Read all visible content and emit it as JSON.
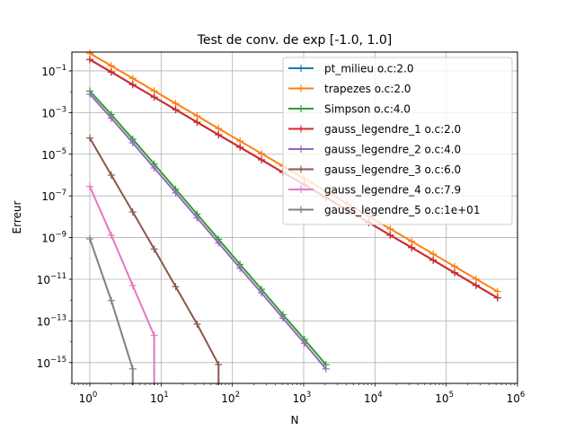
{
  "chart_data": {
    "type": "line",
    "title": "Test de conv. de exp [-1.0, 1.0]",
    "xlabel": "N",
    "ylabel": "Erreur",
    "xscale": "log",
    "yscale": "log",
    "xlim": [
      0.56,
      1000000
    ],
    "ylim": [
      1e-16,
      0.8
    ],
    "grid": true,
    "legend_position": "top-right",
    "x_ticks": [
      {
        "base": "10",
        "exp": "0",
        "value": 1
      },
      {
        "base": "10",
        "exp": "1",
        "value": 10
      },
      {
        "base": "10",
        "exp": "2",
        "value": 100
      },
      {
        "base": "10",
        "exp": "3",
        "value": 1000
      },
      {
        "base": "10",
        "exp": "4",
        "value": 10000
      },
      {
        "base": "10",
        "exp": "5",
        "value": 100000
      },
      {
        "base": "10",
        "exp": "6",
        "value": 1000000
      }
    ],
    "y_ticks": [
      {
        "base": "10",
        "exp": "−1",
        "value": 0.1
      },
      {
        "base": "10",
        "exp": "−3",
        "value": 0.001
      },
      {
        "base": "10",
        "exp": "−5",
        "value": 1e-05
      },
      {
        "base": "10",
        "exp": "−7",
        "value": 1e-07
      },
      {
        "base": "10",
        "exp": "−9",
        "value": 1e-09
      },
      {
        "base": "10",
        "exp": "−11",
        "value": 1e-11
      },
      {
        "base": "10",
        "exp": "−13",
        "value": 1e-13
      },
      {
        "base": "10",
        "exp": "−15",
        "value": 1e-15
      }
    ],
    "series": [
      {
        "name": "pt_milieu o.c:2.0",
        "color": "#1f77b4",
        "x": [
          1,
          2,
          4,
          8,
          16,
          32,
          64,
          128,
          256,
          512,
          1024,
          2048,
          4096,
          8192,
          16384,
          32768,
          65536,
          131072,
          262144,
          524288
        ],
        "y": [
          0.35,
          0.088,
          0.022,
          0.0055,
          0.00138,
          0.000345,
          8.6e-05,
          2.16e-05,
          5.4e-06,
          1.35e-06,
          3.4e-07,
          8.4e-08,
          2.1e-08,
          5.3e-09,
          1.3e-09,
          3.3e-10,
          8.2e-11,
          2.05e-11,
          5.1e-12,
          1.28e-12
        ]
      },
      {
        "name": "trapezes o.c:2.0",
        "color": "#ff7f0e",
        "x": [
          1,
          2,
          4,
          8,
          16,
          32,
          64,
          128,
          256,
          512,
          1024,
          2048,
          4096,
          8192,
          16384,
          32768,
          65536,
          131072,
          262144,
          524288
        ],
        "y": [
          0.7,
          0.176,
          0.044,
          0.011,
          0.00275,
          0.00069,
          0.000172,
          4.3e-05,
          1.08e-05,
          2.7e-06,
          6.7e-07,
          1.68e-07,
          4.2e-08,
          1.05e-08,
          2.6e-09,
          6.6e-10,
          1.64e-10,
          4.1e-11,
          1.03e-11,
          2.6e-12
        ]
      },
      {
        "name": "Simpson o.c:4.0",
        "color": "#2ca02c",
        "x": [
          1,
          2,
          4,
          8,
          16,
          32,
          64,
          128,
          256,
          512,
          1024,
          2048
        ],
        "y": [
          0.0108,
          0.00081,
          5.3e-05,
          3.4e-06,
          2.1e-07,
          1.33e-08,
          8.3e-10,
          5.2e-11,
          3.3e-12,
          2e-13,
          1.3e-14,
          8e-16
        ]
      },
      {
        "name": "gauss_legendre_1 o.c:2.0",
        "color": "#d62728",
        "x": [
          1,
          2,
          4,
          8,
          16,
          32,
          64,
          128,
          256,
          512,
          1024,
          2048,
          4096,
          8192,
          16384,
          32768,
          65536,
          131072,
          262144,
          524288
        ],
        "y": [
          0.35,
          0.088,
          0.022,
          0.0055,
          0.00138,
          0.000345,
          8.6e-05,
          2.16e-05,
          5.4e-06,
          1.35e-06,
          3.4e-07,
          8.4e-08,
          2.1e-08,
          5.3e-09,
          1.3e-09,
          3.3e-10,
          8.2e-11,
          2.05e-11,
          5.1e-12,
          1.28e-12
        ]
      },
      {
        "name": "gauss_legendre_2 o.c:4.0",
        "color": "#9467bd",
        "x": [
          1,
          2,
          4,
          8,
          16,
          32,
          64,
          128,
          256,
          512,
          1024,
          2048
        ],
        "y": [
          0.0077,
          0.00054,
          3.5e-05,
          2.2e-06,
          1.4e-07,
          8.8e-09,
          5.5e-10,
          3.4e-11,
          2.2e-12,
          1.35e-13,
          8.5e-15,
          5e-16
        ]
      },
      {
        "name": "gauss_legendre_3 o.c:6.0",
        "color": "#8c564b",
        "x": [
          1,
          2,
          4,
          8,
          16,
          32,
          64,
          64
        ],
        "y": [
          6e-05,
          1e-06,
          1.7e-08,
          2.8e-10,
          4.4e-12,
          7e-14,
          8e-16,
          1e-17
        ]
      },
      {
        "name": "gauss_legendre_4 o.c:7.9",
        "color": "#e377c2",
        "x": [
          1,
          2,
          4,
          8,
          8
        ],
        "y": [
          2.8e-07,
          1.3e-09,
          5e-12,
          2e-14,
          1e-17
        ]
      },
      {
        "name": "gauss_legendre_5 o.c:1e+01",
        "color": "#7f7f7f",
        "x": [
          1,
          2,
          4,
          4
        ],
        "y": [
          8.7e-10,
          9.5e-13,
          5e-16,
          1e-17
        ]
      }
    ]
  }
}
